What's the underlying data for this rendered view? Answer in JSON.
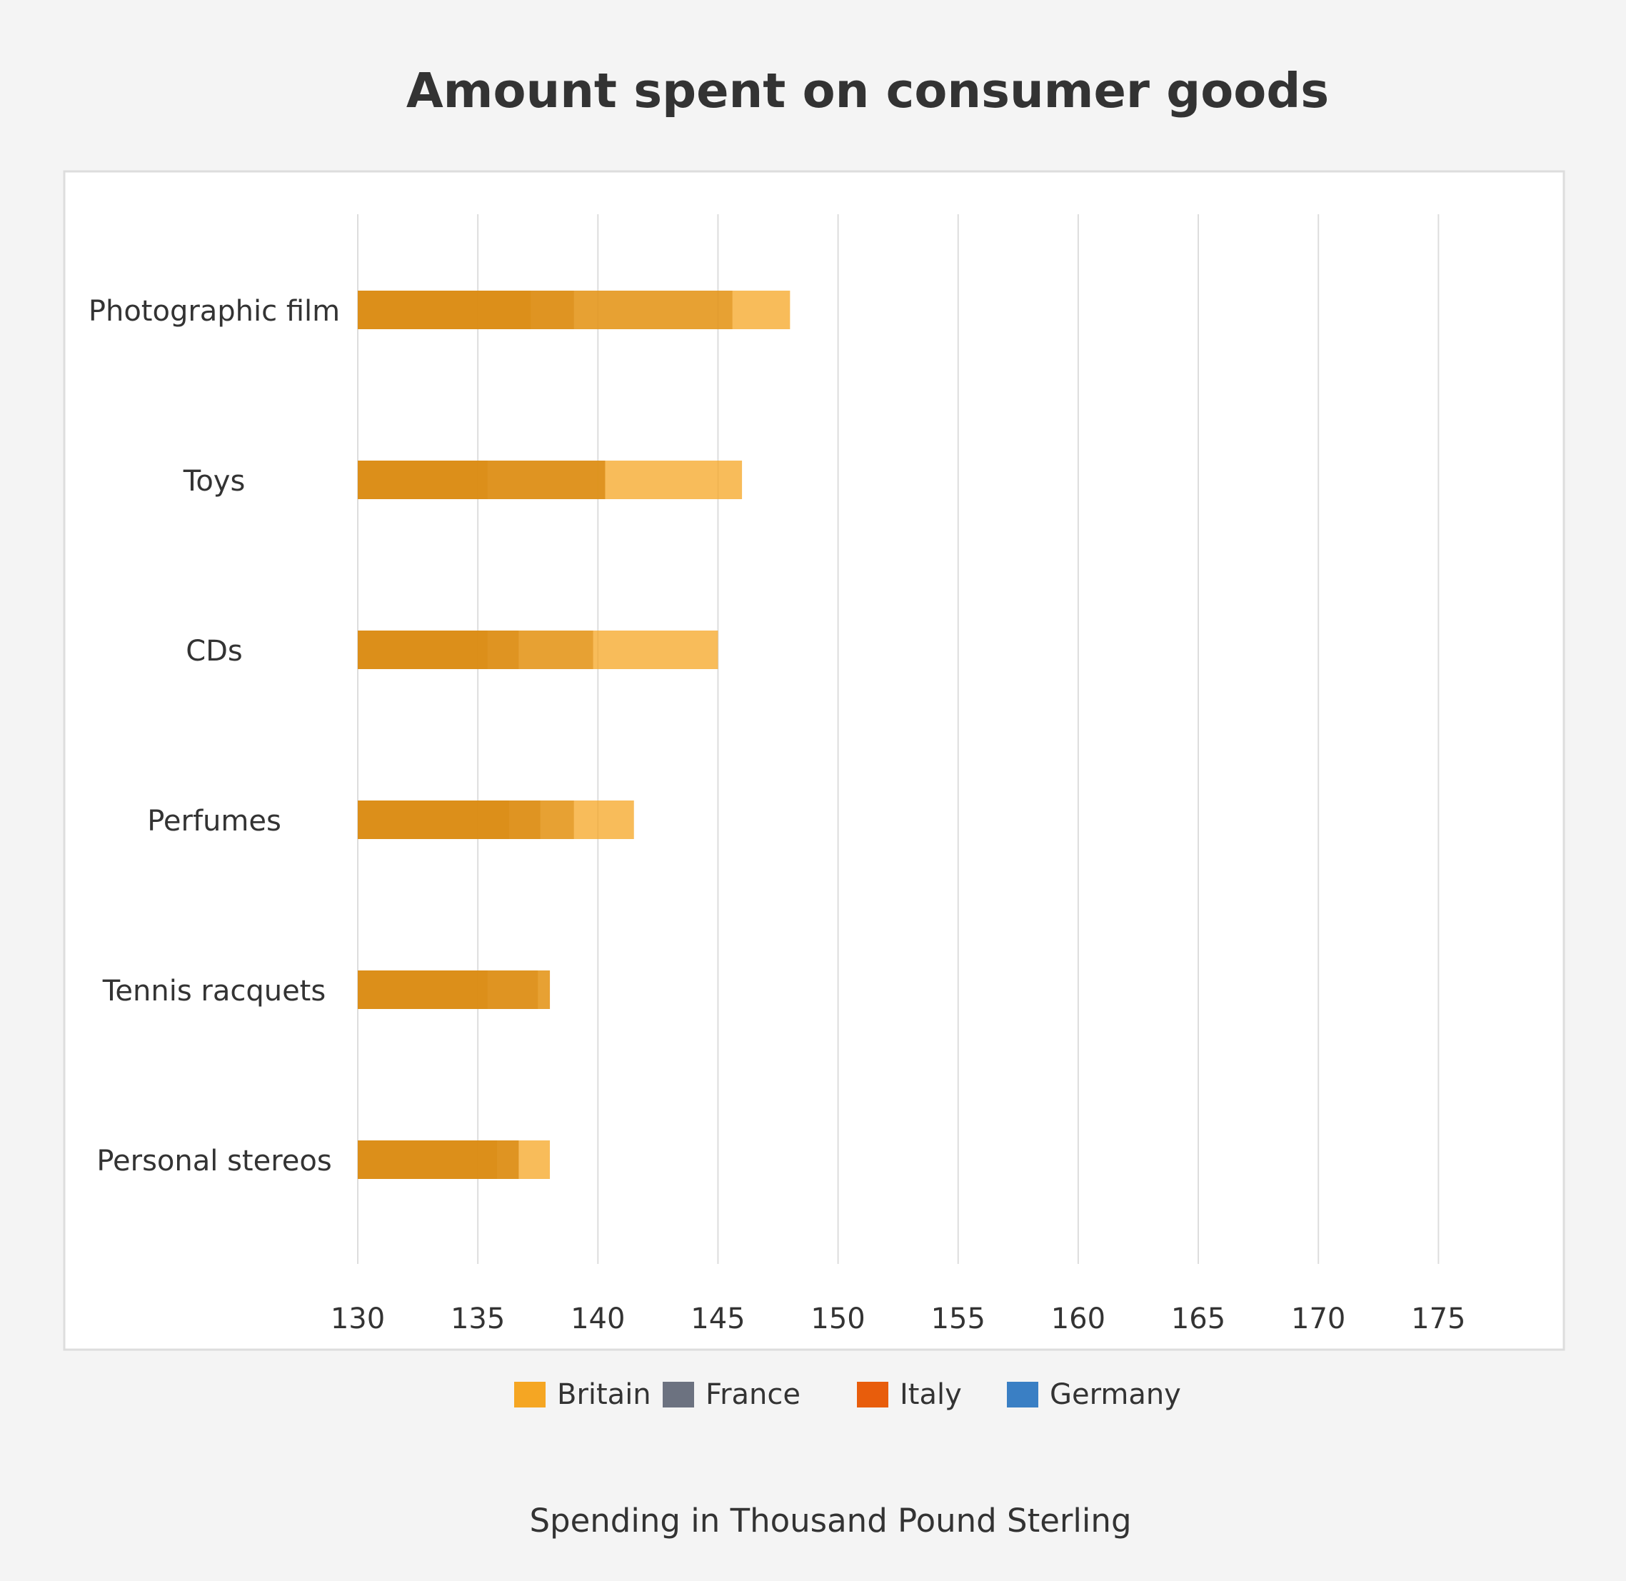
{
  "chart_data": {
    "type": "bar",
    "orientation": "horizontal",
    "title": "Amount spent on consumer goods",
    "xlabel": "Spending in Thousand Pound Sterling",
    "ylabel": "",
    "categories": [
      "Photographic film",
      "Toys",
      "CDs",
      "Perfumes",
      "Tennis racquets",
      "Personal stereos"
    ],
    "series": [
      {
        "name": "Britain",
        "values": [
          148,
          146,
          145,
          141.5,
          138,
          138
        ],
        "color": "#f5a623"
      },
      {
        "name": "France",
        "values": [
          145.6,
          140.3,
          139.8,
          139,
          137.5,
          136.7
        ],
        "color": "#6c7280"
      },
      {
        "name": "Italy",
        "values": [
          139,
          140.3,
          136.7,
          137.6,
          138,
          136.7
        ],
        "color": "#e85d0c"
      },
      {
        "name": "Germany",
        "values": [
          137.2,
          135.4,
          135.4,
          136.3,
          135.4,
          135.8
        ],
        "color": "#3a7fc4"
      }
    ],
    "xlim": [
      130,
      178
    ],
    "xticks": [
      "130",
      "135",
      "140",
      "145",
      "150",
      "155",
      "160",
      "165",
      "170",
      "175"
    ],
    "grid": true,
    "legend_position": "bottom"
  }
}
